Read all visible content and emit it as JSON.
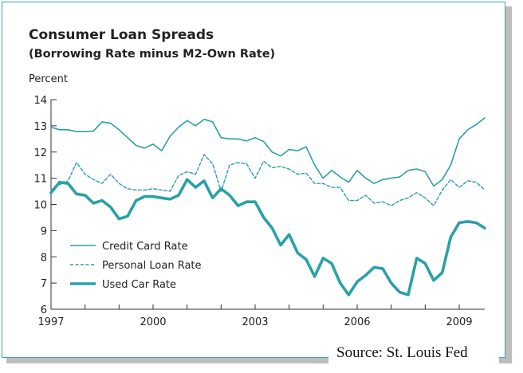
{
  "title": "Consumer Loan Spreads",
  "subtitle": "(Borrowing Rate minus M2-Own Rate)",
  "source": "Source: St. Louis Fed",
  "colors": {
    "line": "#2aa0a8",
    "frame": "#3aa8b0",
    "text": "#222222"
  },
  "chart_data": {
    "type": "line",
    "title": "Consumer Loan Spreads",
    "subtitle": "(Borrowing Rate minus M2-Own Rate)",
    "xlabel": "",
    "ylabel": "Percent",
    "xlim": [
      1997,
      2009.75
    ],
    "ylim": [
      6,
      14
    ],
    "x_ticks": [
      1997,
      2000,
      2003,
      2006,
      2009
    ],
    "y_ticks": [
      6,
      7,
      8,
      9,
      10,
      11,
      12,
      13,
      14
    ],
    "grid": false,
    "legend_position": "lower-left",
    "x": [
      1997.0,
      1997.25,
      1997.5,
      1997.75,
      1998.0,
      1998.25,
      1998.5,
      1998.75,
      1999.0,
      1999.25,
      1999.5,
      1999.75,
      2000.0,
      2000.25,
      2000.5,
      2000.75,
      2001.0,
      2001.25,
      2001.5,
      2001.75,
      2002.0,
      2002.25,
      2002.5,
      2002.75,
      2003.0,
      2003.25,
      2003.5,
      2003.75,
      2004.0,
      2004.25,
      2004.5,
      2004.75,
      2005.0,
      2005.25,
      2005.5,
      2005.75,
      2006.0,
      2006.25,
      2006.5,
      2006.75,
      2007.0,
      2007.25,
      2007.5,
      2007.75,
      2008.0,
      2008.25,
      2008.5,
      2008.75,
      2009.0,
      2009.25,
      2009.5,
      2009.75
    ],
    "series": [
      {
        "name": "Credit Card Rate",
        "style": "solid",
        "values": [
          12.95,
          12.85,
          12.85,
          12.78,
          12.78,
          12.8,
          13.15,
          13.1,
          12.85,
          12.55,
          12.25,
          12.15,
          12.3,
          12.05,
          12.6,
          12.95,
          13.2,
          13.0,
          13.25,
          13.15,
          12.55,
          12.5,
          12.5,
          12.42,
          12.55,
          12.4,
          12.0,
          11.85,
          12.1,
          12.05,
          12.2,
          11.5,
          11.0,
          11.3,
          11.05,
          10.85,
          11.3,
          11.0,
          10.8,
          10.95,
          11.0,
          11.05,
          11.3,
          11.35,
          11.25,
          10.7,
          10.95,
          11.5,
          12.5,
          12.85,
          13.05,
          13.3
        ]
      },
      {
        "name": "Personal Loan Rate",
        "style": "dashed",
        "values": [
          10.55,
          10.75,
          10.9,
          11.6,
          11.15,
          10.95,
          10.8,
          11.15,
          10.8,
          10.6,
          10.55,
          10.55,
          10.6,
          10.55,
          10.5,
          11.1,
          11.25,
          11.15,
          11.9,
          11.55,
          10.5,
          11.5,
          11.6,
          11.55,
          11.0,
          11.65,
          11.4,
          11.45,
          11.35,
          11.15,
          11.2,
          10.8,
          10.8,
          10.65,
          10.65,
          10.15,
          10.15,
          10.35,
          10.05,
          10.1,
          9.95,
          10.15,
          10.25,
          10.45,
          10.25,
          9.95,
          10.55,
          10.95,
          10.65,
          10.9,
          10.85,
          10.55
        ]
      },
      {
        "name": "Used Car Rate",
        "style": "thick",
        "values": [
          10.45,
          10.85,
          10.8,
          10.4,
          10.35,
          10.05,
          10.15,
          9.9,
          9.45,
          9.55,
          10.15,
          10.3,
          10.3,
          10.25,
          10.2,
          10.35,
          10.95,
          10.65,
          10.9,
          10.25,
          10.6,
          10.35,
          9.95,
          10.1,
          10.1,
          9.5,
          9.1,
          8.45,
          8.85,
          8.15,
          7.9,
          7.25,
          7.95,
          7.75,
          7.0,
          6.55,
          7.05,
          7.3,
          7.6,
          7.55,
          7.0,
          6.65,
          6.55,
          7.95,
          7.75,
          7.1,
          7.4,
          8.75,
          9.3,
          9.35,
          9.3,
          9.1
        ]
      }
    ]
  }
}
